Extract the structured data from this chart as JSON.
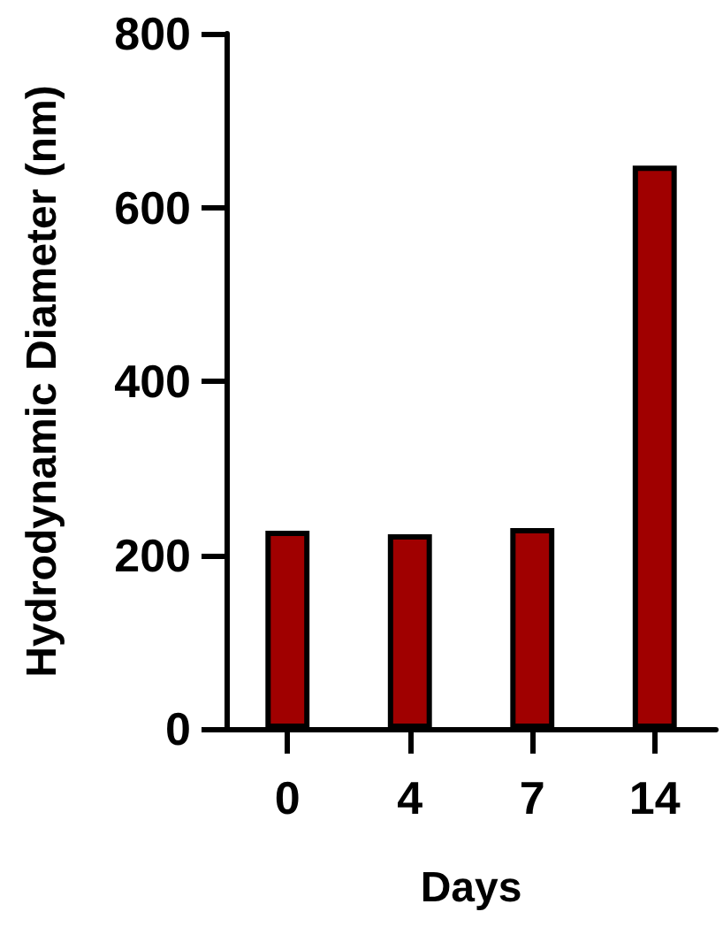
{
  "chart_data": {
    "type": "bar",
    "xlabel": "Days",
    "ylabel": "Hydrodynamic Diameter (nm)",
    "categories": [
      "0",
      "4",
      "7",
      "14"
    ],
    "values": [
      228,
      224,
      231,
      648
    ],
    "color": "#a00000",
    "ylim": [
      0,
      800
    ],
    "yticks": [
      0,
      200,
      400,
      600,
      800
    ],
    "grid": false
  }
}
